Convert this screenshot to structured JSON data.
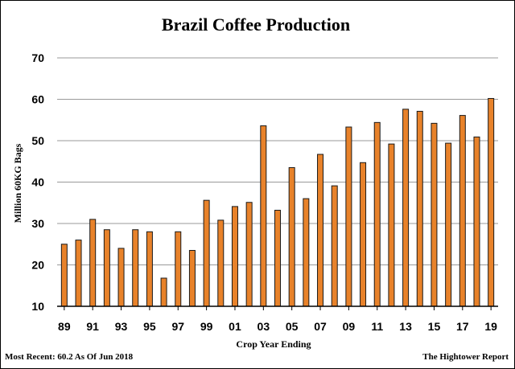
{
  "chart_data": {
    "type": "bar",
    "title": "Brazil Coffee Production",
    "xlabel": "Crop Year Ending",
    "ylabel": "Million 60KG Bags",
    "ylim": [
      10,
      70
    ],
    "yticks": [
      "10",
      "20",
      "30",
      "40",
      "50",
      "60",
      "70"
    ],
    "grid": true,
    "bar_color": "#E8822A",
    "bar_edge_color": "#1A1A1A",
    "categories": [
      "89",
      "90",
      "91",
      "92",
      "93",
      "94",
      "95",
      "96",
      "97",
      "98",
      "99",
      "00",
      "01",
      "02",
      "03",
      "04",
      "05",
      "06",
      "07",
      "08",
      "09",
      "10",
      "11",
      "12",
      "13",
      "14",
      "15",
      "16",
      "17",
      "18",
      "19"
    ],
    "xtick_labels": [
      "89",
      "91",
      "93",
      "95",
      "97",
      "99",
      "01",
      "03",
      "05",
      "07",
      "09",
      "11",
      "13",
      "15",
      "17",
      "19"
    ],
    "values": [
      25.0,
      26.0,
      31.0,
      28.5,
      24.0,
      28.5,
      28.0,
      16.8,
      28.0,
      23.5,
      35.6,
      30.8,
      34.1,
      35.1,
      53.6,
      33.2,
      43.5,
      36.0,
      46.7,
      39.1,
      53.3,
      44.7,
      54.4,
      49.2,
      57.6,
      57.1,
      54.2,
      49.4,
      56.1,
      50.9,
      60.2
    ]
  },
  "footer": {
    "left": "Most Recent: 60.2 As Of Jun 2018",
    "right": "The Hightower Report"
  }
}
